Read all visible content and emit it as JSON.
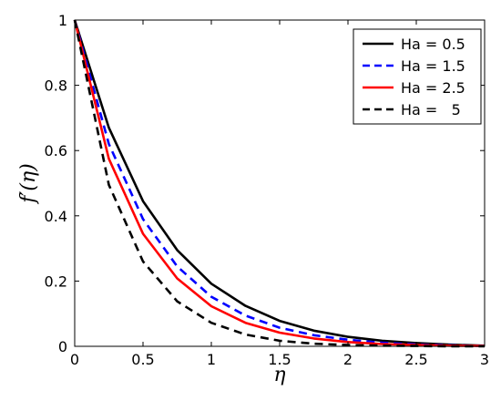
{
  "chart_data": {
    "type": "line",
    "xlabel": "η",
    "ylabel": "f′(η)",
    "xlim": [
      0,
      3
    ],
    "ylim": [
      0,
      1
    ],
    "xticks": [
      0,
      0.5,
      1,
      1.5,
      2,
      2.5,
      3
    ],
    "xtick_labels": [
      "0",
      "0.5",
      "1",
      "1.5",
      "2",
      "2.5",
      "3"
    ],
    "yticks": [
      0,
      0.2,
      0.4,
      0.6,
      0.8,
      1
    ],
    "ytick_labels": [
      "0",
      "0.2",
      "0.4",
      "0.6",
      "0.8",
      "1"
    ],
    "grid": false,
    "legend_position": "top-right",
    "x": [
      0,
      0.25,
      0.5,
      0.75,
      1.0,
      1.25,
      1.5,
      1.75,
      2.0,
      2.25,
      2.5,
      2.75,
      3.0
    ],
    "series": [
      {
        "name": "Ha = 0.5",
        "color": "#000000",
        "dash": "solid",
        "values": [
          1.0,
          0.67,
          0.445,
          0.295,
          0.192,
          0.124,
          0.078,
          0.048,
          0.029,
          0.017,
          0.01,
          0.005,
          0.002
        ]
      },
      {
        "name": "Ha = 1.5",
        "color": "#0000ff",
        "dash": "dashed",
        "values": [
          1.0,
          0.62,
          0.39,
          0.245,
          0.152,
          0.094,
          0.057,
          0.034,
          0.02,
          0.011,
          0.006,
          0.003,
          0.001
        ]
      },
      {
        "name": "Ha = 2.5",
        "color": "#ff0000",
        "dash": "solid",
        "values": [
          1.0,
          0.575,
          0.345,
          0.208,
          0.123,
          0.072,
          0.042,
          0.024,
          0.013,
          0.007,
          0.004,
          0.002,
          0.001
        ]
      },
      {
        "name": "Ha =   5",
        "color": "#000000",
        "dash": "dashed",
        "values": [
          1.0,
          0.495,
          0.26,
          0.138,
          0.072,
          0.036,
          0.017,
          0.008,
          0.004,
          0.002,
          0.001,
          0.0,
          0.0
        ]
      }
    ]
  }
}
